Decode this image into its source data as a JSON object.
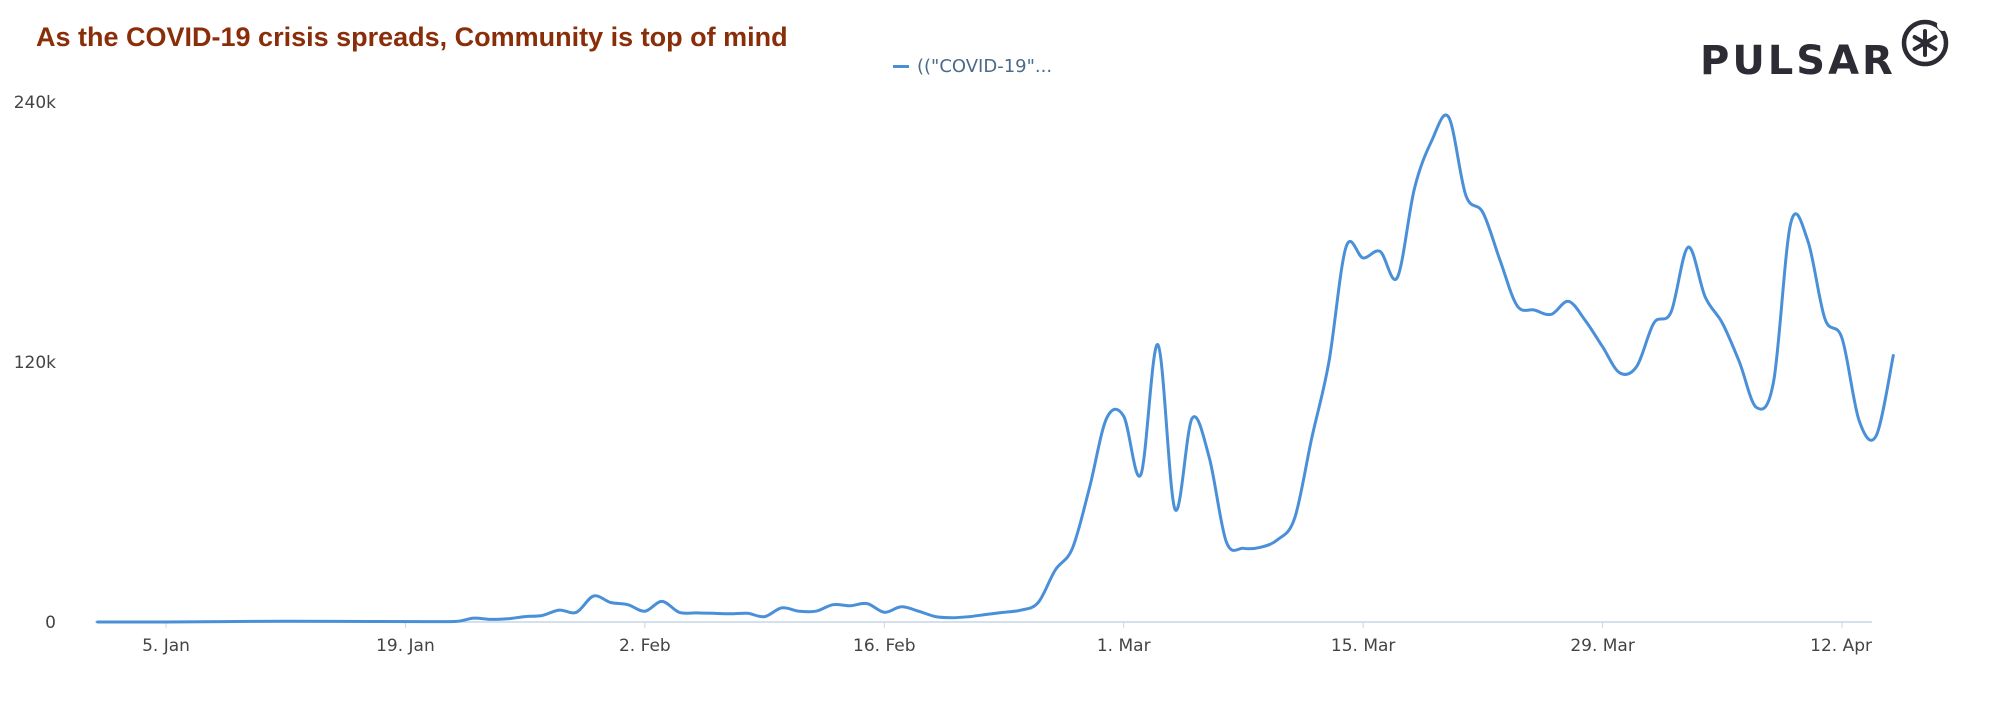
{
  "title": "As the COVID-19 crisis spreads, Community is top of mind",
  "logo": {
    "text": "PULSAR",
    "icon": "asterisk-badge-icon"
  },
  "colors": {
    "title": "#8a2e0a",
    "series": "#4a90d9",
    "axis": "#c6d6e6",
    "logo": "#2d2b33"
  },
  "chart_data": {
    "type": "line",
    "x_axis": {
      "type": "date",
      "ticks": [
        "5. Jan",
        "19. Jan",
        "2. Feb",
        "16. Feb",
        "1. Mar",
        "15. Mar",
        "29. Mar",
        "12. Apr"
      ],
      "range": [
        "2020-01-01",
        "2020-04-13"
      ]
    },
    "y_axis": {
      "ticks": [
        "0",
        "120k",
        "240k"
      ],
      "range": [
        0,
        240000
      ]
    },
    "legend": {
      "position": "top-center"
    },
    "grid": false,
    "series": [
      {
        "name": "((\"COVID-19\"...",
        "points": [
          [
            "2020-01-01",
            0
          ],
          [
            "2020-01-05",
            0
          ],
          [
            "2020-01-10",
            300
          ],
          [
            "2020-01-15",
            300
          ],
          [
            "2020-01-20",
            200
          ],
          [
            "2020-01-22",
            300
          ],
          [
            "2020-01-23",
            1800
          ],
          [
            "2020-01-24",
            1200
          ],
          [
            "2020-01-25",
            1500
          ],
          [
            "2020-01-26",
            2500
          ],
          [
            "2020-01-27",
            3000
          ],
          [
            "2020-01-28",
            5500
          ],
          [
            "2020-01-29",
            4500
          ],
          [
            "2020-01-30",
            12000
          ],
          [
            "2020-01-31",
            9000
          ],
          [
            "2020-02-01",
            8000
          ],
          [
            "2020-02-02",
            5000
          ],
          [
            "2020-02-03",
            9500
          ],
          [
            "2020-02-04",
            4500
          ],
          [
            "2020-02-05",
            4200
          ],
          [
            "2020-02-06",
            4000
          ],
          [
            "2020-02-07",
            3800
          ],
          [
            "2020-02-08",
            4000
          ],
          [
            "2020-02-09",
            2500
          ],
          [
            "2020-02-10",
            6500
          ],
          [
            "2020-02-11",
            5000
          ],
          [
            "2020-02-12",
            5000
          ],
          [
            "2020-02-13",
            8000
          ],
          [
            "2020-02-14",
            7500
          ],
          [
            "2020-02-15",
            8500
          ],
          [
            "2020-02-16",
            4500
          ],
          [
            "2020-02-17",
            7000
          ],
          [
            "2020-02-18",
            5000
          ],
          [
            "2020-02-19",
            2500
          ],
          [
            "2020-02-20",
            2000
          ],
          [
            "2020-02-21",
            2500
          ],
          [
            "2020-02-22",
            3500
          ],
          [
            "2020-02-23",
            4500
          ],
          [
            "2020-02-24",
            5500
          ],
          [
            "2020-02-25",
            9000
          ],
          [
            "2020-02-26",
            24000
          ],
          [
            "2020-02-27",
            34000
          ],
          [
            "2020-02-28",
            62000
          ],
          [
            "2020-02-29",
            94000
          ],
          [
            "2020-03-01",
            95000
          ],
          [
            "2020-03-02",
            68000
          ],
          [
            "2020-03-03",
            128000
          ],
          [
            "2020-03-04",
            52000
          ],
          [
            "2020-03-05",
            94000
          ],
          [
            "2020-03-06",
            76000
          ],
          [
            "2020-03-07",
            37000
          ],
          [
            "2020-03-08",
            34000
          ],
          [
            "2020-03-09",
            34500
          ],
          [
            "2020-03-10",
            38000
          ],
          [
            "2020-03-11",
            48000
          ],
          [
            "2020-03-12",
            85000
          ],
          [
            "2020-03-13",
            120000
          ],
          [
            "2020-03-14",
            173000
          ],
          [
            "2020-03-15",
            168000
          ],
          [
            "2020-03-16",
            171000
          ],
          [
            "2020-03-17",
            159000
          ],
          [
            "2020-03-18",
            200000
          ],
          [
            "2020-03-19",
            222000
          ],
          [
            "2020-03-20",
            233000
          ],
          [
            "2020-03-21",
            197000
          ],
          [
            "2020-03-22",
            189000
          ],
          [
            "2020-03-23",
            167000
          ],
          [
            "2020-03-24",
            146000
          ],
          [
            "2020-03-25",
            144000
          ],
          [
            "2020-03-26",
            142000
          ],
          [
            "2020-03-27",
            148000
          ],
          [
            "2020-03-28",
            139000
          ],
          [
            "2020-03-29",
            127000
          ],
          [
            "2020-03-30",
            115000
          ],
          [
            "2020-03-31",
            118000
          ],
          [
            "2020-04-01",
            138000
          ],
          [
            "2020-04-02",
            143000
          ],
          [
            "2020-04-03",
            173000
          ],
          [
            "2020-04-04",
            150000
          ],
          [
            "2020-04-05",
            138000
          ],
          [
            "2020-04-06",
            120000
          ],
          [
            "2020-04-07",
            99000
          ],
          [
            "2020-04-08",
            111000
          ],
          [
            "2020-04-09",
            184000
          ],
          [
            "2020-04-10",
            176000
          ],
          [
            "2020-04-11",
            140000
          ],
          [
            "2020-04-12",
            131000
          ],
          [
            "2020-04-13",
            93000
          ],
          [
            "2020-04-14",
            86000
          ],
          [
            "2020-04-15",
            123000
          ]
        ]
      }
    ]
  }
}
